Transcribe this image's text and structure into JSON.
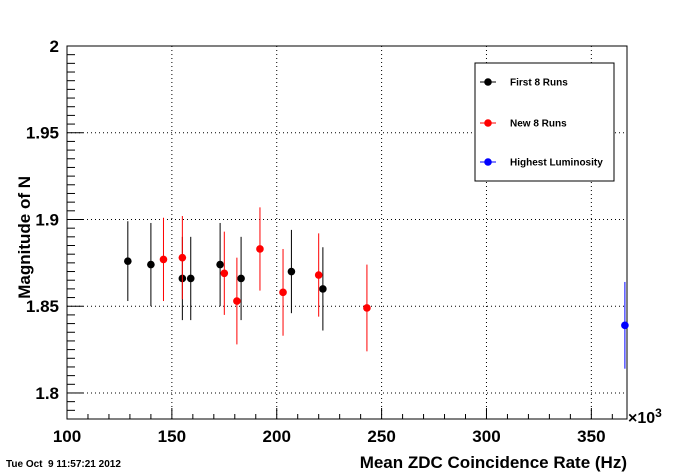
{
  "timestamp": "Tue Oct  9 11:57:21 2012",
  "chart_data": {
    "type": "scatter",
    "title": "",
    "xlabel": "Mean ZDC Coincidence Rate (Hz)",
    "ylabel": "Magnitude of N",
    "x_multiplier": "×10",
    "x_multiplier_exp": "3",
    "xlim": [
      100,
      367
    ],
    "ylim": [
      1.785,
      2.0
    ],
    "x_ticks": [
      "100",
      "150",
      "200",
      "250",
      "300",
      "350"
    ],
    "y_ticks": [
      "1.8",
      "1.85",
      "1.9",
      "1.95",
      "2"
    ],
    "grid": true,
    "legend_position": "top-right",
    "series": [
      {
        "name": "First 8 Runs",
        "color": "#000000",
        "points": [
          {
            "x": 129,
            "y": 1.876,
            "err": 0.023
          },
          {
            "x": 140,
            "y": 1.874,
            "err": 0.024
          },
          {
            "x": 155,
            "y": 1.866,
            "err": 0.024
          },
          {
            "x": 159,
            "y": 1.866,
            "err": 0.024
          },
          {
            "x": 173,
            "y": 1.874,
            "err": 0.024
          },
          {
            "x": 183,
            "y": 1.866,
            "err": 0.024
          },
          {
            "x": 207,
            "y": 1.87,
            "err": 0.024
          },
          {
            "x": 222,
            "y": 1.86,
            "err": 0.024
          }
        ]
      },
      {
        "name": "New 8 Runs",
        "color": "#ff0000",
        "points": [
          {
            "x": 146,
            "y": 1.877,
            "err": 0.024
          },
          {
            "x": 155,
            "y": 1.878,
            "err": 0.024
          },
          {
            "x": 175,
            "y": 1.869,
            "err": 0.024
          },
          {
            "x": 181,
            "y": 1.853,
            "err": 0.025
          },
          {
            "x": 192,
            "y": 1.883,
            "err": 0.024
          },
          {
            "x": 203,
            "y": 1.858,
            "err": 0.025
          },
          {
            "x": 220,
            "y": 1.868,
            "err": 0.024
          },
          {
            "x": 243,
            "y": 1.849,
            "err": 0.025
          }
        ]
      },
      {
        "name": "Highest Luminosity",
        "color": "#0000ff",
        "points": [
          {
            "x": 366,
            "y": 1.839,
            "err": 0.025
          }
        ]
      }
    ]
  }
}
